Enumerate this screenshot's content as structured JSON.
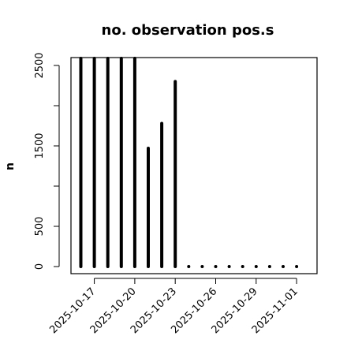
{
  "chart_data": {
    "type": "bar",
    "title": "no. observation pos.s",
    "xlabel": "",
    "ylabel": "n",
    "ylim": [
      0,
      2600
    ],
    "y_ticks": [
      0,
      500,
      1500,
      2500
    ],
    "y_minor_ticks": [
      0,
      500,
      1000,
      1500,
      2000,
      2500
    ],
    "x_tick_labels": [
      "2025-10-17",
      "2025-10-20",
      "2025-10-23",
      "2025-10-26",
      "2025-10-29",
      "2025-11-01"
    ],
    "highlighted_tick": "2025-10-23",
    "highlight_color": "#2e7d32",
    "categories": [
      "2025-10-16",
      "2025-10-17",
      "2025-10-18",
      "2025-10-19",
      "2025-10-20",
      "2025-10-21",
      "2025-10-22",
      "2025-10-23",
      "2025-10-24",
      "2025-10-25",
      "2025-10-26",
      "2025-10-27",
      "2025-10-28",
      "2025-10-29",
      "2025-10-30",
      "2025-10-31",
      "2025-11-01"
    ],
    "values": [
      2600,
      2600,
      2600,
      2600,
      2600,
      1470,
      1780,
      2300,
      0,
      0,
      0,
      0,
      0,
      0,
      0,
      0,
      0
    ],
    "grid": false,
    "bar_color": "#000000"
  }
}
